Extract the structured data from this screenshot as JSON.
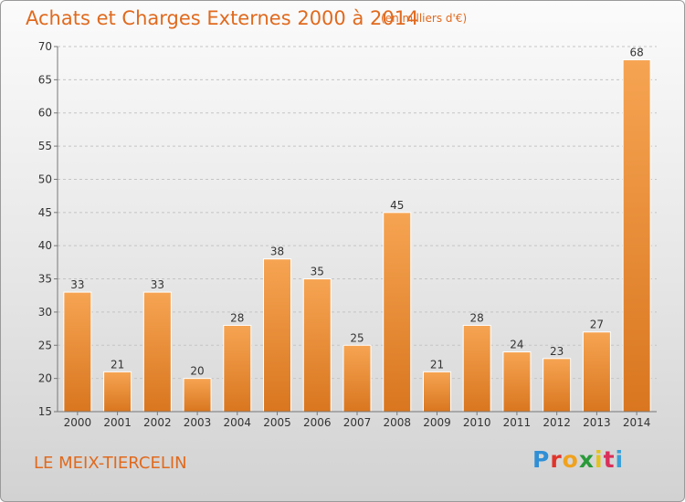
{
  "header": {
    "title": "Achats et Charges Externes 2000 à 2014",
    "subtitle": "(en milliers d'€)"
  },
  "footer": {
    "place": "LE MEIX-TIERCELIN",
    "logo": {
      "letters": [
        "P",
        "r",
        "o",
        "x",
        "i",
        "t",
        "i"
      ],
      "colors": [
        "#2f8fd6",
        "#e0342b",
        "#f0a21d",
        "#2a9a3a",
        "#e6c21d",
        "#d9305a",
        "#3aa0d8"
      ]
    }
  },
  "chart_data": {
    "type": "bar",
    "categories": [
      "2000",
      "2001",
      "2002",
      "2003",
      "2004",
      "2005",
      "2006",
      "2007",
      "2008",
      "2009",
      "2010",
      "2011",
      "2012",
      "2013",
      "2014"
    ],
    "values": [
      33,
      21,
      33,
      20,
      28,
      38,
      35,
      25,
      45,
      21,
      28,
      24,
      23,
      27,
      68
    ],
    "ylim": [
      15,
      70
    ],
    "yticks": [
      15,
      20,
      25,
      30,
      35,
      40,
      45,
      50,
      55,
      60,
      65,
      70
    ],
    "grid": true,
    "bar_color": "#f29a44",
    "bar_color_dark": "#d9761f"
  }
}
